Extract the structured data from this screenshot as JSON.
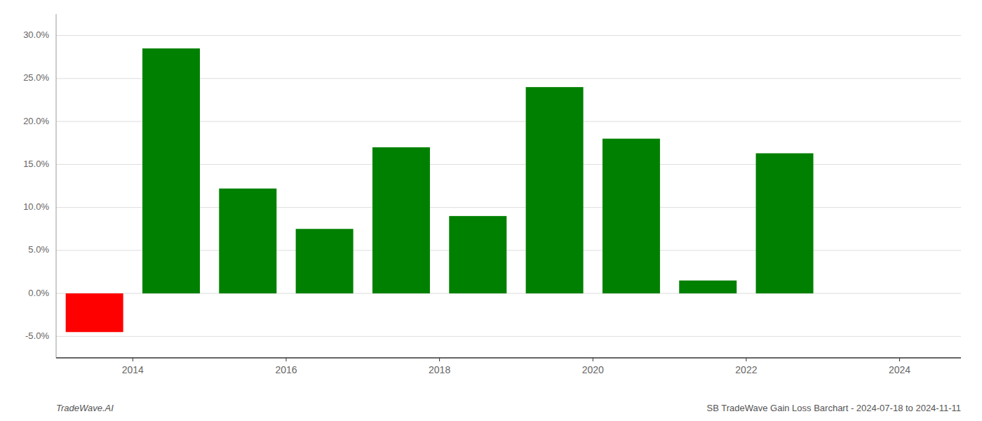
{
  "chart_data": {
    "type": "bar",
    "x": [
      2013.5,
      2014.5,
      2015.5,
      2016.5,
      2017.5,
      2018.5,
      2019.5,
      2020.5,
      2021.5,
      2022.5
    ],
    "values": [
      -4.5,
      28.5,
      12.2,
      7.5,
      17.0,
      9.0,
      24.0,
      18.0,
      1.5,
      16.3
    ],
    "colors": [
      "#ff0000",
      "#008000",
      "#008000",
      "#008000",
      "#008000",
      "#008000",
      "#008000",
      "#008000",
      "#008000",
      "#008000"
    ],
    "xlim": [
      2013.0,
      2024.8
    ],
    "xticks": [
      2014,
      2016,
      2018,
      2020,
      2022,
      2024
    ],
    "ylim": [
      -7.5,
      32.5
    ],
    "yticks": [
      {
        "value": -5.0,
        "label": "-5.0%"
      },
      {
        "value": 0.0,
        "label": "0.0%"
      },
      {
        "value": 5.0,
        "label": "5.0%"
      },
      {
        "value": 10.0,
        "label": "10.0%"
      },
      {
        "value": 15.0,
        "label": "15.0%"
      },
      {
        "value": 20.0,
        "label": "20.0%"
      },
      {
        "value": 25.0,
        "label": "25.0%"
      },
      {
        "value": 30.0,
        "label": "30.0%"
      }
    ],
    "grid": true,
    "annotations": [
      "TradeWave.AI",
      "SB TradeWave Gain Loss Barchart - 2024-07-18 to 2024-11-11"
    ]
  }
}
